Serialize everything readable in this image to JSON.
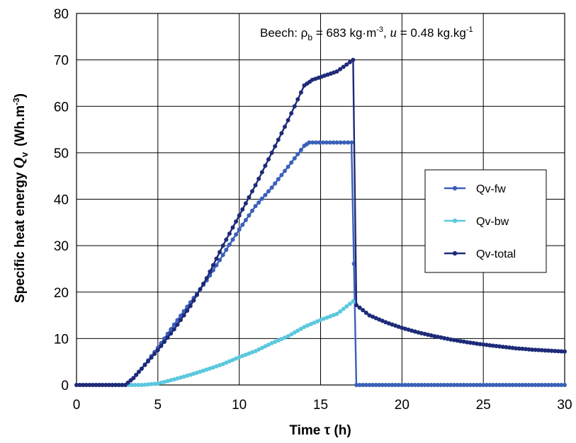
{
  "chart_data": {
    "type": "line",
    "xlabel": "Time τ (h)",
    "ylabel": "Specific heat energy Qv (Wh.m-3)",
    "xlim": [
      0,
      30
    ],
    "ylim": [
      0,
      80
    ],
    "x_ticks": [
      0,
      5,
      10,
      15,
      20,
      25,
      30
    ],
    "y_ticks": [
      0,
      10,
      20,
      30,
      40,
      50,
      60,
      70,
      80
    ],
    "grid": true,
    "legend_position": "right",
    "annotation": {
      "species": "Beech",
      "density_symbol": "ρb",
      "density_value": "683 kg·m-3",
      "moisture_symbol": "u",
      "moisture_value": "0.48 kg.kg-1"
    },
    "series": [
      {
        "name": "Qv-fw",
        "color": "#3A60B8",
        "points": [
          [
            0,
            0
          ],
          [
            3,
            0
          ],
          [
            3.5,
            1.5
          ],
          [
            4,
            3.5
          ],
          [
            5,
            8
          ],
          [
            6,
            13
          ],
          [
            7,
            17.8
          ],
          [
            8,
            22.5
          ],
          [
            9,
            28
          ],
          [
            10,
            33.5
          ],
          [
            11,
            38.5
          ],
          [
            12,
            42.5
          ],
          [
            13,
            47
          ],
          [
            14,
            51.5
          ],
          [
            14.3,
            52.2
          ],
          [
            16,
            52.2
          ],
          [
            16.9,
            52.2
          ],
          [
            17.2,
            0
          ],
          [
            30,
            0
          ]
        ]
      },
      {
        "name": "Qv-bw",
        "color": "#5BC8DD",
        "points": [
          [
            0,
            0
          ],
          [
            4,
            0
          ],
          [
            5,
            0.3
          ],
          [
            6,
            1.2
          ],
          [
            7,
            2.2
          ],
          [
            8,
            3.3
          ],
          [
            9,
            4.5
          ],
          [
            10,
            6
          ],
          [
            11,
            7.3
          ],
          [
            12,
            9
          ],
          [
            13,
            10.5
          ],
          [
            14,
            12.5
          ],
          [
            15,
            14
          ],
          [
            16,
            15.3
          ],
          [
            17,
            18
          ],
          [
            17.2,
            17.2
          ],
          [
            18,
            15
          ],
          [
            19,
            13.5
          ],
          [
            20,
            12.3
          ],
          [
            21,
            11.3
          ],
          [
            22,
            10.5
          ],
          [
            23,
            9.8
          ],
          [
            24,
            9.2
          ],
          [
            25,
            8.7
          ],
          [
            26,
            8.3
          ],
          [
            27,
            7.9
          ],
          [
            28,
            7.6
          ],
          [
            29,
            7.4
          ],
          [
            30,
            7.2
          ]
        ]
      },
      {
        "name": "Qv-total",
        "color": "#1F2A78",
        "points": [
          [
            0,
            0
          ],
          [
            3,
            0
          ],
          [
            3.5,
            1.5
          ],
          [
            4,
            3.5
          ],
          [
            5,
            7.5
          ],
          [
            6,
            12
          ],
          [
            7,
            17
          ],
          [
            8,
            23
          ],
          [
            9,
            30
          ],
          [
            10,
            36.5
          ],
          [
            11,
            43
          ],
          [
            12,
            50
          ],
          [
            13,
            57
          ],
          [
            14,
            64.5
          ],
          [
            14.5,
            65.7
          ],
          [
            16,
            67.5
          ],
          [
            17,
            70
          ],
          [
            17.2,
            17.2
          ],
          [
            18,
            15
          ],
          [
            19,
            13.5
          ],
          [
            20,
            12.3
          ],
          [
            21,
            11.3
          ],
          [
            22,
            10.5
          ],
          [
            23,
            9.8
          ],
          [
            24,
            9.2
          ],
          [
            25,
            8.7
          ],
          [
            26,
            8.3
          ],
          [
            27,
            7.9
          ],
          [
            28,
            7.6
          ],
          [
            29,
            7.4
          ],
          [
            30,
            7.2
          ]
        ]
      }
    ]
  }
}
